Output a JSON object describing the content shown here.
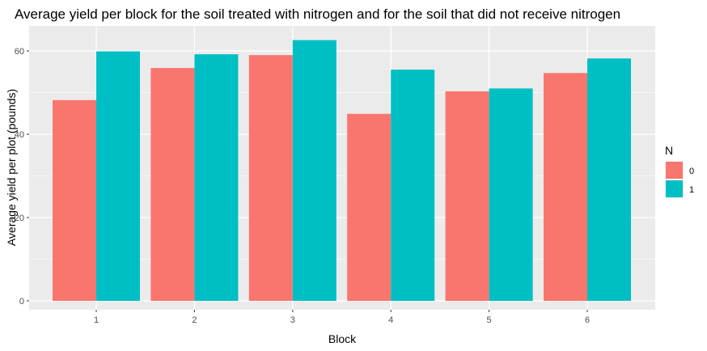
{
  "chart_data": {
    "type": "bar",
    "title": "Average yield per block for the soil treated with nitrogen and for the soil that did not receive nitrogen",
    "xlabel": "Block",
    "ylabel": "Average yield per plot (pounds)",
    "categories": [
      "1",
      "2",
      "3",
      "4",
      "5",
      "6"
    ],
    "series": [
      {
        "name": "0",
        "color": "#F8766D",
        "values": [
          48.2,
          55.9,
          59.0,
          44.9,
          50.3,
          54.7
        ]
      },
      {
        "name": "1",
        "color": "#00BFC4",
        "values": [
          59.9,
          59.2,
          62.6,
          55.5,
          51.0,
          58.2
        ]
      }
    ],
    "ylim": [
      0,
      64.5
    ],
    "yticks": [
      0,
      20,
      40,
      60
    ],
    "legend": {
      "title": "N",
      "position": "right"
    },
    "grid": true,
    "panel_background": "#EBEBEB",
    "gridline_color": "#FFFFFF"
  }
}
